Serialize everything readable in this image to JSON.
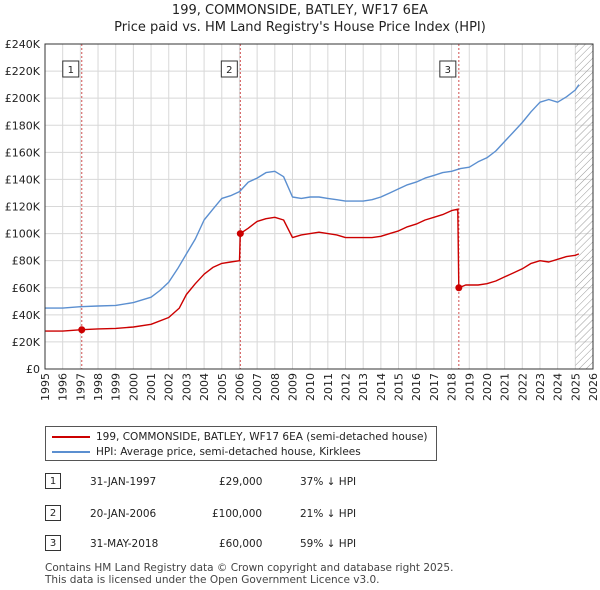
{
  "header": {
    "title_line1": "199, COMMONSIDE, BATLEY, WF17 6EA",
    "title_line2": "Price paid vs. HM Land Registry's House Price Index (HPI)"
  },
  "colors": {
    "price_paid": "#cc0000",
    "hpi": "#5b8fd0",
    "vline": "#d05050",
    "grid": "#d8d8d8",
    "hatch": "#999999"
  },
  "chart_data": {
    "type": "line",
    "title": "199, COMMONSIDE, BATLEY, WF17 6EA — Price paid vs. HM Land Registry's House Price Index (HPI)",
    "xlabel": "",
    "ylabel": "",
    "xlim": [
      1995,
      2026
    ],
    "ylim": [
      0,
      240000
    ],
    "x_ticks": [
      1995,
      1996,
      1997,
      1998,
      1999,
      2000,
      2001,
      2002,
      2003,
      2004,
      2005,
      2006,
      2007,
      2008,
      2009,
      2010,
      2011,
      2012,
      2013,
      2014,
      2015,
      2016,
      2017,
      2018,
      2019,
      2020,
      2021,
      2022,
      2023,
      2024,
      2025,
      2026
    ],
    "y_ticks": [
      0,
      20000,
      40000,
      60000,
      80000,
      100000,
      120000,
      140000,
      160000,
      180000,
      200000,
      220000,
      240000
    ],
    "y_tick_labels": [
      "£0",
      "£20K",
      "£40K",
      "£60K",
      "£80K",
      "£100K",
      "£120K",
      "£140K",
      "£160K",
      "£180K",
      "£200K",
      "£220K",
      "£240K"
    ],
    "grid": true,
    "future_hatch_from": 2025.0,
    "series": [
      {
        "name": "199, COMMONSIDE, BATLEY, WF17 6EA (semi-detached house)",
        "color": "#cc0000",
        "points": [
          [
            1995.0,
            28000
          ],
          [
            1996.0,
            28000
          ],
          [
            1997.08,
            29000
          ],
          [
            1998.0,
            29600
          ],
          [
            1999.0,
            30000
          ],
          [
            2000.0,
            31000
          ],
          [
            2001.0,
            33000
          ],
          [
            2002.0,
            38000
          ],
          [
            2002.6,
            45000
          ],
          [
            2003.0,
            55000
          ],
          [
            2003.5,
            63000
          ],
          [
            2004.0,
            70000
          ],
          [
            2004.5,
            75000
          ],
          [
            2005.0,
            78000
          ],
          [
            2005.5,
            79000
          ],
          [
            2006.0,
            80000
          ],
          [
            2006.05,
            100000
          ],
          [
            2006.5,
            104000
          ],
          [
            2007.0,
            109000
          ],
          [
            2007.5,
            111000
          ],
          [
            2008.0,
            112000
          ],
          [
            2008.5,
            110000
          ],
          [
            2009.0,
            97000
          ],
          [
            2009.5,
            99000
          ],
          [
            2010.0,
            100000
          ],
          [
            2010.5,
            101000
          ],
          [
            2011.0,
            100000
          ],
          [
            2011.5,
            99000
          ],
          [
            2012.0,
            97000
          ],
          [
            2012.5,
            97000
          ],
          [
            2013.0,
            97000
          ],
          [
            2013.5,
            97000
          ],
          [
            2014.0,
            98000
          ],
          [
            2014.5,
            100000
          ],
          [
            2015.0,
            102000
          ],
          [
            2015.5,
            105000
          ],
          [
            2016.0,
            107000
          ],
          [
            2016.5,
            110000
          ],
          [
            2017.0,
            112000
          ],
          [
            2017.5,
            114000
          ],
          [
            2018.0,
            117000
          ],
          [
            2018.35,
            118000
          ],
          [
            2018.41,
            60000
          ],
          [
            2018.8,
            62000
          ],
          [
            2019.5,
            62000
          ],
          [
            2020.0,
            63000
          ],
          [
            2020.5,
            65000
          ],
          [
            2021.0,
            68000
          ],
          [
            2021.5,
            71000
          ],
          [
            2022.0,
            74000
          ],
          [
            2022.5,
            78000
          ],
          [
            2023.0,
            80000
          ],
          [
            2023.5,
            79000
          ],
          [
            2024.0,
            81000
          ],
          [
            2024.5,
            83000
          ],
          [
            2025.0,
            84000
          ],
          [
            2025.2,
            85000
          ]
        ]
      },
      {
        "name": "HPI: Average price, semi-detached house, Kirklees",
        "color": "#5b8fd0",
        "points": [
          [
            1995.0,
            45000
          ],
          [
            1996.0,
            45000
          ],
          [
            1997.0,
            46000
          ],
          [
            1998.0,
            46500
          ],
          [
            1999.0,
            47000
          ],
          [
            2000.0,
            49000
          ],
          [
            2001.0,
            53000
          ],
          [
            2001.5,
            58000
          ],
          [
            2002.0,
            64000
          ],
          [
            2002.5,
            74000
          ],
          [
            2003.0,
            85000
          ],
          [
            2003.5,
            96000
          ],
          [
            2004.0,
            110000
          ],
          [
            2004.5,
            118000
          ],
          [
            2005.0,
            126000
          ],
          [
            2005.5,
            128000
          ],
          [
            2006.0,
            131000
          ],
          [
            2006.5,
            138000
          ],
          [
            2007.0,
            141000
          ],
          [
            2007.5,
            145000
          ],
          [
            2008.0,
            146000
          ],
          [
            2008.5,
            142000
          ],
          [
            2009.0,
            127000
          ],
          [
            2009.5,
            126000
          ],
          [
            2010.0,
            127000
          ],
          [
            2010.5,
            127000
          ],
          [
            2011.0,
            126000
          ],
          [
            2011.5,
            125000
          ],
          [
            2012.0,
            124000
          ],
          [
            2012.5,
            124000
          ],
          [
            2013.0,
            124000
          ],
          [
            2013.5,
            125000
          ],
          [
            2014.0,
            127000
          ],
          [
            2014.5,
            130000
          ],
          [
            2015.0,
            133000
          ],
          [
            2015.5,
            136000
          ],
          [
            2016.0,
            138000
          ],
          [
            2016.5,
            141000
          ],
          [
            2017.0,
            143000
          ],
          [
            2017.5,
            145000
          ],
          [
            2018.0,
            146000
          ],
          [
            2018.5,
            148000
          ],
          [
            2019.0,
            149000
          ],
          [
            2019.5,
            153000
          ],
          [
            2020.0,
            156000
          ],
          [
            2020.5,
            161000
          ],
          [
            2021.0,
            168000
          ],
          [
            2021.5,
            175000
          ],
          [
            2022.0,
            182000
          ],
          [
            2022.5,
            190000
          ],
          [
            2023.0,
            197000
          ],
          [
            2023.5,
            199000
          ],
          [
            2024.0,
            197000
          ],
          [
            2024.5,
            201000
          ],
          [
            2025.0,
            206000
          ],
          [
            2025.2,
            210000
          ]
        ]
      }
    ],
    "sales": [
      {
        "label": "1",
        "x": 1997.08,
        "price": 29000
      },
      {
        "label": "2",
        "x": 2006.05,
        "price": 100000
      },
      {
        "label": "3",
        "x": 2018.41,
        "price": 60000
      }
    ]
  },
  "legend": {
    "items": [
      {
        "label": "199, COMMONSIDE, BATLEY, WF17 6EA (semi-detached house)",
        "color": "#cc0000"
      },
      {
        "label": "HPI: Average price, semi-detached house, Kirklees",
        "color": "#5b8fd0"
      }
    ]
  },
  "transactions": [
    {
      "num": "1",
      "date": "31-JAN-1997",
      "price": "£29,000",
      "hpi": "37% ↓ HPI"
    },
    {
      "num": "2",
      "date": "20-JAN-2006",
      "price": "£100,000",
      "hpi": "21% ↓ HPI"
    },
    {
      "num": "3",
      "date": "31-MAY-2018",
      "price": "£60,000",
      "hpi": "59% ↓ HPI"
    }
  ],
  "footer": {
    "line1": "Contains HM Land Registry data © Crown copyright and database right 2025.",
    "line2": "This data is licensed under the Open Government Licence v3.0."
  }
}
